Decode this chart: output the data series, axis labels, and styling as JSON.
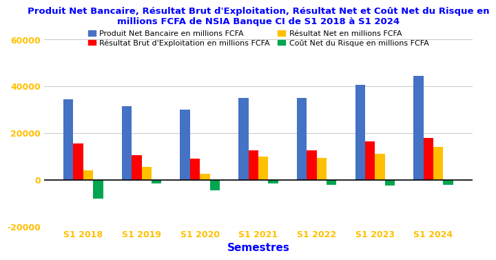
{
  "title": "Produit Net Bancaire, Résultat Brut d'Exploitation, Résultat Net et Coût Net du Risque en\nmillions FCFA de NSIA Banque CI de S1 2018 à S1 2024",
  "xlabel": "Semestres",
  "categories": [
    "S1 2018",
    "S1 2019",
    "S1 2020",
    "S1 2021",
    "S1 2022",
    "S1 2023",
    "S1 2024"
  ],
  "series": {
    "Produit Net Bancaire en millions FCFA": [
      34500,
      31500,
      30000,
      35000,
      35000,
      40500,
      44500
    ],
    "Résultat Brut d'Exploitation en millions FCFA": [
      15500,
      10500,
      9000,
      12500,
      12500,
      16500,
      18000
    ],
    "Résultat Net en millions FCFA": [
      4000,
      5500,
      2500,
      10000,
      9500,
      11000,
      14000
    ],
    "Coût Net du Risque en millions FCFA": [
      -8000,
      -1500,
      -4500,
      -1500,
      -2000,
      -2500,
      -2000
    ]
  },
  "colors": {
    "Produit Net Bancaire en millions FCFA": "#4472C4",
    "Résultat Brut d'Exploitation en millions FCFA": "#FF0000",
    "Résultat Net en millions FCFA": "#FFC000",
    "Coût Net du Risque en millions FCFA": "#00A550"
  },
  "ylim": [
    -20000,
    65000
  ],
  "yticks": [
    -20000,
    0,
    20000,
    40000,
    60000
  ],
  "ytick_labels": [
    "-20000",
    "0",
    "20000",
    "40000",
    "60000"
  ],
  "title_color": "#0000FF",
  "xlabel_color": "#0000FF",
  "tick_color": "#FFC000",
  "background_color": "#FFFFFF",
  "legend_fontsize": 8.0,
  "title_fontsize": 9.5,
  "bar_width": 0.17
}
